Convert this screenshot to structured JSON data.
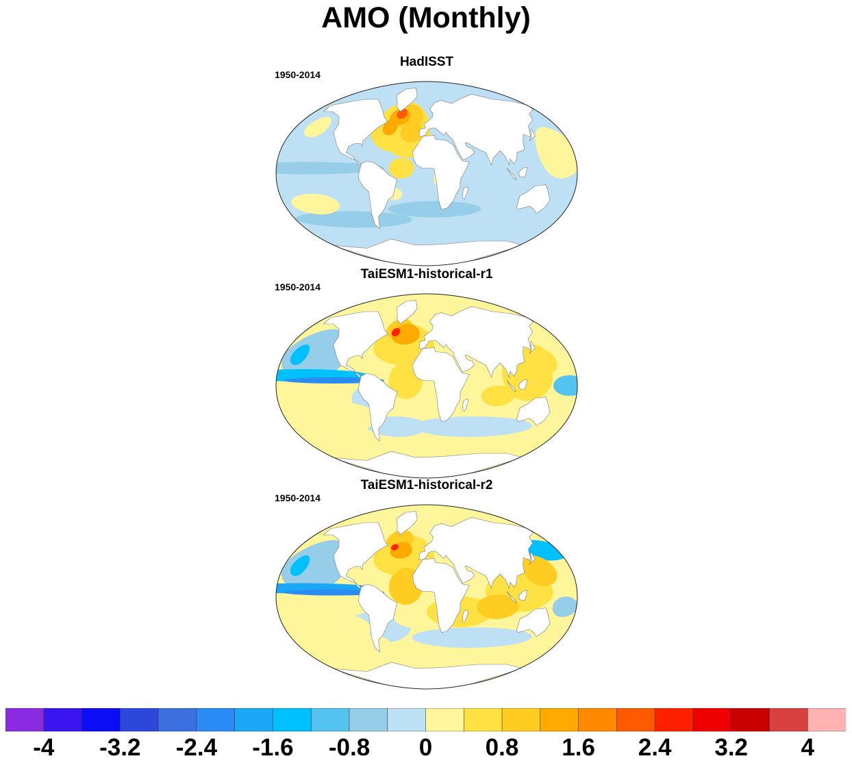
{
  "title": "AMO (Monthly)",
  "panels": [
    {
      "label": "HadISST",
      "period": "1950-2014",
      "variant": 0
    },
    {
      "label": "TaiESM1-historical-r1",
      "period": "1950-2014",
      "variant": 1
    },
    {
      "label": "TaiESM1-historical-r2",
      "period": "1950-2014",
      "variant": 2
    }
  ],
  "colorbar": {
    "colors": [
      "#8a2be2",
      "#3a15f0",
      "#0c0cf5",
      "#2d47dc",
      "#3c6fe0",
      "#2a8bf5",
      "#1aa7f5",
      "#00c0ff",
      "#55c3f0",
      "#96cde8",
      "#bde0f4",
      "#fff59a",
      "#ffe144",
      "#ffcc22",
      "#ffaa00",
      "#ff8a00",
      "#ff5a00",
      "#ff2000",
      "#ee0000",
      "#c80000",
      "#d94040",
      "#ffb2b2"
    ],
    "labels": [
      "-4",
      "-3.2",
      "-2.4",
      "-1.6",
      "-0.8",
      "0",
      "0.8",
      "1.6",
      "2.4",
      "3.2",
      "4"
    ],
    "min": -4,
    "max": 4
  }
}
